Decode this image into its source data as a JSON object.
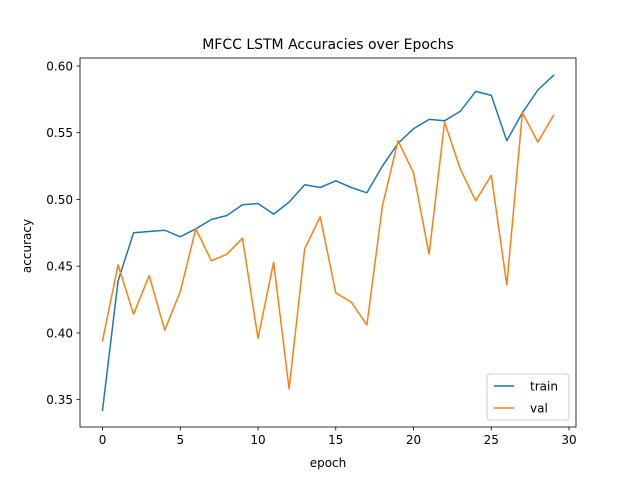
{
  "chart_data": {
    "type": "line",
    "title": "MFCC LSTM Accuracies over Epochs",
    "xlabel": "epoch",
    "ylabel": "accuracy",
    "xlim": [
      -1.45,
      30.45
    ],
    "ylim": [
      0.3295,
      0.606
    ],
    "xticks": [
      0,
      5,
      10,
      15,
      20,
      25,
      30
    ],
    "yticks": [
      0.35,
      0.4,
      0.45,
      0.5,
      0.55,
      0.6
    ],
    "ytick_labels": [
      "0.35",
      "0.40",
      "0.45",
      "0.50",
      "0.55",
      "0.60"
    ],
    "grid": false,
    "legend_position": "lower-right",
    "x": [
      0,
      1,
      2,
      3,
      4,
      5,
      6,
      7,
      8,
      9,
      10,
      11,
      12,
      13,
      14,
      15,
      16,
      17,
      18,
      19,
      20,
      21,
      22,
      23,
      24,
      25,
      26,
      27,
      28,
      29
    ],
    "series": [
      {
        "name": "train",
        "color": "#1f77b4",
        "values": [
          0.342,
          0.439,
          0.475,
          0.476,
          0.477,
          0.472,
          0.478,
          0.485,
          0.488,
          0.496,
          0.497,
          0.489,
          0.498,
          0.511,
          0.509,
          0.514,
          0.509,
          0.505,
          0.525,
          0.542,
          0.553,
          0.56,
          0.559,
          0.566,
          0.581,
          0.578,
          0.544,
          0.565,
          0.582,
          0.593
        ]
      },
      {
        "name": "val",
        "color": "#ff7f0e",
        "values": [
          0.394,
          0.451,
          0.414,
          0.443,
          0.402,
          0.431,
          0.478,
          0.454,
          0.459,
          0.471,
          0.396,
          0.453,
          0.358,
          0.463,
          0.487,
          0.43,
          0.423,
          0.406,
          0.495,
          0.544,
          0.52,
          0.459,
          0.558,
          0.523,
          0.499,
          0.518,
          0.436,
          0.565,
          0.543,
          0.563
        ]
      }
    ]
  }
}
